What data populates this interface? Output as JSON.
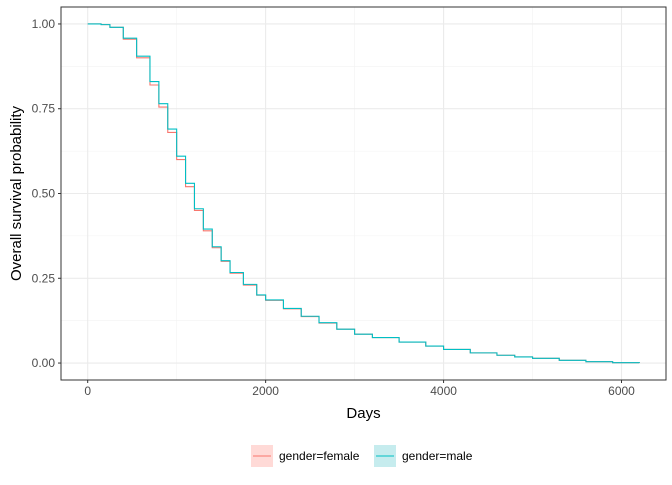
{
  "chart_data": {
    "type": "line",
    "subtype": "kaplan-meier survival curve",
    "title": "",
    "xlabel": "Days",
    "ylabel": "Overall survival probability",
    "xlim": [
      -300,
      6500
    ],
    "ylim": [
      -0.05,
      1.05
    ],
    "x_ticks": [
      0,
      2000,
      4000,
      6000
    ],
    "x_tick_labels": [
      "0",
      "2000",
      "4000",
      "6000"
    ],
    "y_ticks": [
      0,
      0.25,
      0.5,
      0.75,
      1
    ],
    "y_tick_labels": [
      "0.00",
      "0.25",
      "0.50",
      "0.75",
      "1.00"
    ],
    "grid": true,
    "legend_position": "bottom",
    "series": [
      {
        "name": "gender=female",
        "color": "#F8766D",
        "ci_fill": "#FFDAD7",
        "x": [
          0,
          150,
          250,
          400,
          550,
          700,
          800,
          900,
          1000,
          1100,
          1200,
          1300,
          1400,
          1500,
          1600,
          1750,
          1900,
          2000,
          2200,
          2400,
          2600,
          2800,
          3000,
          3200,
          3500,
          3800,
          4000,
          4300,
          4600,
          4800,
          5000,
          5300,
          5600,
          5900,
          6200
        ],
        "y": [
          1.0,
          0.998,
          0.99,
          0.955,
          0.9,
          0.82,
          0.755,
          0.68,
          0.6,
          0.52,
          0.45,
          0.39,
          0.34,
          0.3,
          0.265,
          0.23,
          0.2,
          0.185,
          0.16,
          0.137,
          0.118,
          0.1,
          0.085,
          0.075,
          0.062,
          0.05,
          0.04,
          0.03,
          0.023,
          0.018,
          0.014,
          0.008,
          0.004,
          0.001,
          0.0
        ]
      },
      {
        "name": "gender=male",
        "color": "#00BFC4",
        "ci_fill": "#C6ECEE",
        "x": [
          0,
          150,
          250,
          400,
          550,
          700,
          800,
          900,
          1000,
          1100,
          1200,
          1300,
          1400,
          1500,
          1600,
          1750,
          1900,
          2000,
          2200,
          2400,
          2600,
          2800,
          3000,
          3200,
          3500,
          3800,
          4000,
          4300,
          4600,
          4800,
          5000,
          5300,
          5600,
          5900,
          6200
        ],
        "y": [
          1.0,
          0.998,
          0.99,
          0.958,
          0.905,
          0.83,
          0.765,
          0.69,
          0.61,
          0.53,
          0.455,
          0.395,
          0.343,
          0.302,
          0.267,
          0.232,
          0.201,
          0.186,
          0.161,
          0.138,
          0.119,
          0.1,
          0.085,
          0.075,
          0.062,
          0.05,
          0.04,
          0.03,
          0.023,
          0.018,
          0.014,
          0.008,
          0.004,
          0.001,
          0.0
        ]
      }
    ]
  }
}
